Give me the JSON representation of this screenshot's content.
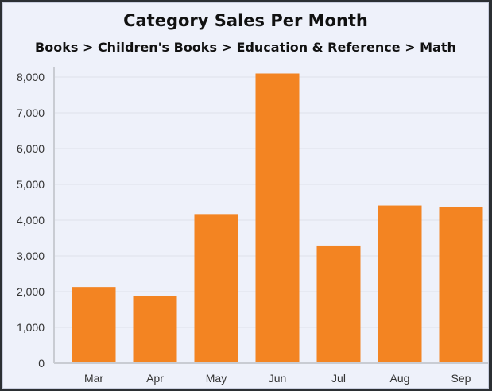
{
  "chart_data": {
    "type": "bar",
    "title": "Category Sales Per Month",
    "subtitle": "Books > Children's Books > Education & Reference > Math",
    "categories": [
      "Mar",
      "Apr",
      "May",
      "Jun",
      "Jul",
      "Aug",
      "Sep"
    ],
    "values": [
      2130,
      1880,
      4170,
      8100,
      3290,
      4410,
      4360
    ],
    "ylim": [
      0,
      8000
    ],
    "yticks": [
      0,
      1000,
      2000,
      3000,
      4000,
      5000,
      6000,
      7000,
      8000
    ],
    "ytick_labels": [
      "0",
      "1,000",
      "2,000",
      "3,000",
      "4,000",
      "5,000",
      "6,000",
      "7,000",
      "8,000"
    ],
    "grid": true,
    "bar_color": "#f38422",
    "background_color": "#eef1fa"
  }
}
